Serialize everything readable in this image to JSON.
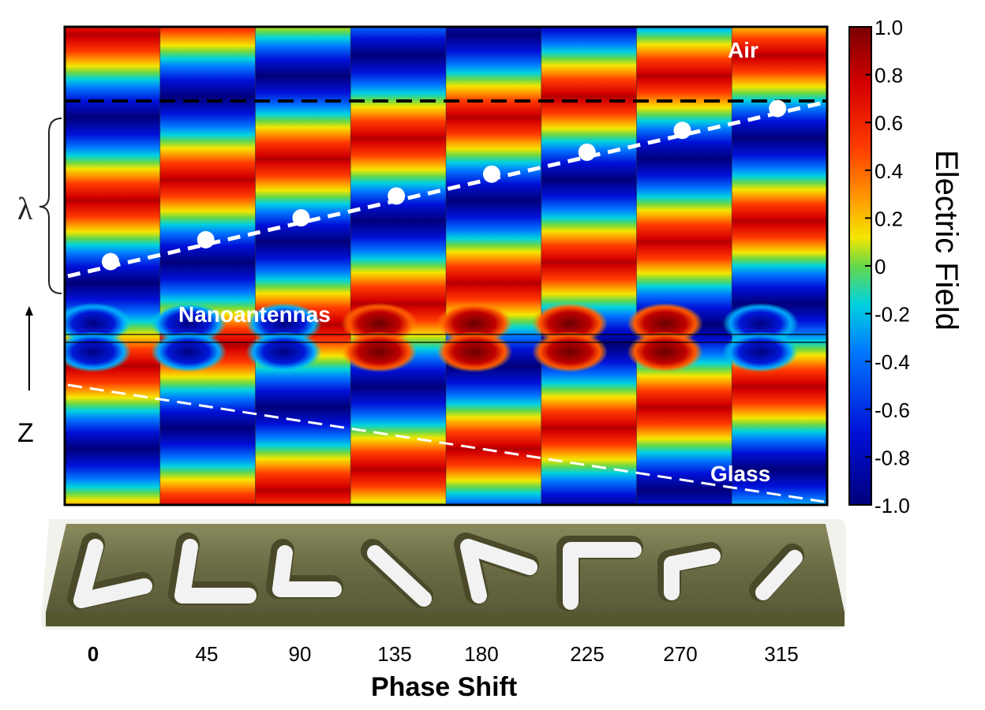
{
  "labels": {
    "air": "Air",
    "glass": "Glass",
    "nanoantennas": "Nanoantennas",
    "lambda": "λ",
    "z_axis": "Z",
    "colorbar_title": "Electric Field",
    "xaxis_title": "Phase Shift"
  },
  "colorbar": {
    "ticks": [
      "1.0",
      "0.8",
      "0.6",
      "0.4",
      "0.2",
      "0",
      "-0.2",
      "-0.4",
      "-0.6",
      "-0.8",
      "-1.0"
    ],
    "colors": [
      "#7a0000",
      "#d40000",
      "#ff3a00",
      "#ff9a00",
      "#f4e600",
      "#66d84a",
      "#00d2e0",
      "#0078ff",
      "#0010d8",
      "#00007a"
    ]
  },
  "columns": [
    {
      "phase": "0",
      "shape": "V"
    },
    {
      "phase": "45",
      "shape": "V"
    },
    {
      "phase": "90",
      "shape": "V"
    },
    {
      "phase": "135",
      "shape": "bar"
    },
    {
      "phase": "180",
      "shape": "V"
    },
    {
      "phase": "225",
      "shape": "V"
    },
    {
      "phase": "270",
      "shape": "V"
    },
    {
      "phase": "315",
      "shape": "bar"
    }
  ]
}
